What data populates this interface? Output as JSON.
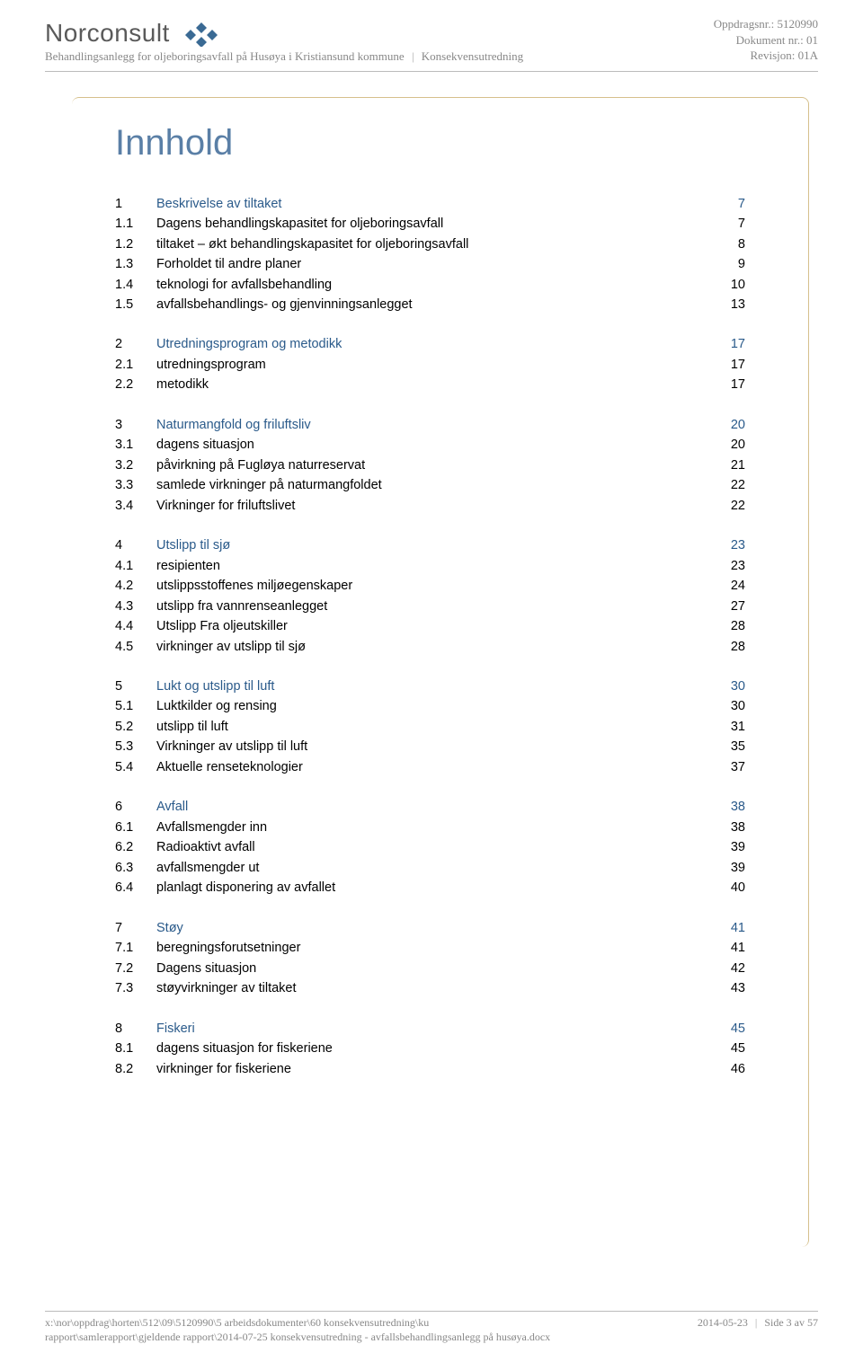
{
  "header": {
    "company": "Norconsult",
    "subtitle_left": "Behandlingsanlegg for oljeboringsavfall på Husøya i Kristiansund kommune",
    "subtitle_right": "Konsekvensutredning",
    "meta": {
      "oppdrag_label": "Oppdragsnr.: ",
      "oppdrag": "5120990",
      "dokument_label": "Dokument nr.: ",
      "dokument": "01",
      "revisjon_label": "Revisjon: ",
      "revisjon": "01A"
    }
  },
  "title": "Innhold",
  "colors": {
    "title": "#5a7fa6",
    "heading_link": "#2a5a8a",
    "card_border": "#d6c08c",
    "meta_text": "#888888",
    "rule": "#bbbbbb"
  },
  "typography": {
    "title_fontsize": 40,
    "body_fontsize": 14.5,
    "meta_fontsize": 13,
    "footer_fontsize": 12,
    "logo_fontsize": 28
  },
  "toc": [
    {
      "items": [
        {
          "n": "1",
          "t": "Beskrivelse av tiltaket",
          "p": "7",
          "head": true
        },
        {
          "n": "1.1",
          "t": "Dagens behandlingskapasitet for oljeboringsavfall",
          "p": "7"
        },
        {
          "n": "1.2",
          "t": "tiltaket – økt behandlingskapasitet for oljeboringsavfall",
          "p": "8"
        },
        {
          "n": "1.3",
          "t": "Forholdet til andre planer",
          "p": "9"
        },
        {
          "n": "1.4",
          "t": "teknologi for avfallsbehandling",
          "p": "10"
        },
        {
          "n": "1.5",
          "t": "avfallsbehandlings- og gjenvinningsanlegget",
          "p": "13"
        }
      ]
    },
    {
      "items": [
        {
          "n": "2",
          "t": "Utredningsprogram og metodikk",
          "p": "17",
          "head": true
        },
        {
          "n": "2.1",
          "t": "utredningsprogram",
          "p": "17"
        },
        {
          "n": "2.2",
          "t": "metodikk",
          "p": "17"
        }
      ]
    },
    {
      "items": [
        {
          "n": "3",
          "t": "Naturmangfold og friluftsliv",
          "p": "20",
          "head": true
        },
        {
          "n": "3.1",
          "t": "dagens situasjon",
          "p": "20"
        },
        {
          "n": "3.2",
          "t": "påvirkning på Fugløya naturreservat",
          "p": "21"
        },
        {
          "n": "3.3",
          "t": "samlede virkninger på naturmangfoldet",
          "p": "22"
        },
        {
          "n": "3.4",
          "t": "Virkninger for friluftslivet",
          "p": "22"
        }
      ]
    },
    {
      "items": [
        {
          "n": "4",
          "t": "Utslipp til sjø",
          "p": "23",
          "head": true
        },
        {
          "n": "4.1",
          "t": "resipienten",
          "p": "23"
        },
        {
          "n": "4.2",
          "t": "utslippsstoffenes miljøegenskaper",
          "p": "24"
        },
        {
          "n": "4.3",
          "t": "utslipp fra vannrenseanlegget",
          "p": "27"
        },
        {
          "n": "4.4",
          "t": "Utslipp Fra oljeutskiller",
          "p": "28"
        },
        {
          "n": "4.5",
          "t": "virkninger av utslipp til sjø",
          "p": "28"
        }
      ]
    },
    {
      "items": [
        {
          "n": "5",
          "t": "Lukt og utslipp til luft",
          "p": "30",
          "head": true
        },
        {
          "n": "5.1",
          "t": "Luktkilder og rensing",
          "p": "30"
        },
        {
          "n": "5.2",
          "t": "utslipp til luft",
          "p": "31"
        },
        {
          "n": "5.3",
          "t": "Virkninger av utslipp til luft",
          "p": "35"
        },
        {
          "n": "5.4",
          "t": "Aktuelle renseteknologier",
          "p": "37"
        }
      ]
    },
    {
      "items": [
        {
          "n": "6",
          "t": "Avfall",
          "p": "38",
          "head": true
        },
        {
          "n": "6.1",
          "t": "Avfallsmengder inn",
          "p": "38"
        },
        {
          "n": "6.2",
          "t": "Radioaktivt avfall",
          "p": "39"
        },
        {
          "n": "6.3",
          "t": "avfallsmengder ut",
          "p": "39"
        },
        {
          "n": "6.4",
          "t": "planlagt disponering av avfallet",
          "p": "40"
        }
      ]
    },
    {
      "items": [
        {
          "n": "7",
          "t": "Støy",
          "p": "41",
          "head": true
        },
        {
          "n": "7.1",
          "t": "beregningsforutsetninger",
          "p": "41"
        },
        {
          "n": "7.2",
          "t": "Dagens situasjon",
          "p": "42"
        },
        {
          "n": "7.3",
          "t": "støyvirkninger av tiltaket",
          "p": "43"
        }
      ]
    },
    {
      "items": [
        {
          "n": "8",
          "t": "Fiskeri",
          "p": "45",
          "head": true
        },
        {
          "n": "8.1",
          "t": "dagens situasjon for fiskeriene",
          "p": "45"
        },
        {
          "n": "8.2",
          "t": "virkninger for fiskeriene",
          "p": "46"
        }
      ]
    }
  ],
  "footer": {
    "path_line1": "x:\\nor\\oppdrag\\horten\\512\\09\\5120990\\5 arbeidsdokumenter\\60 konsekvensutredning\\ku",
    "path_line2": "rapport\\samlerapport\\gjeldende rapport\\2014-07-25 konsekvensutredning - avfallsbehandlingsanlegg på husøya.docx",
    "date": "2014-05-23",
    "page": "Side 3 av 57"
  }
}
